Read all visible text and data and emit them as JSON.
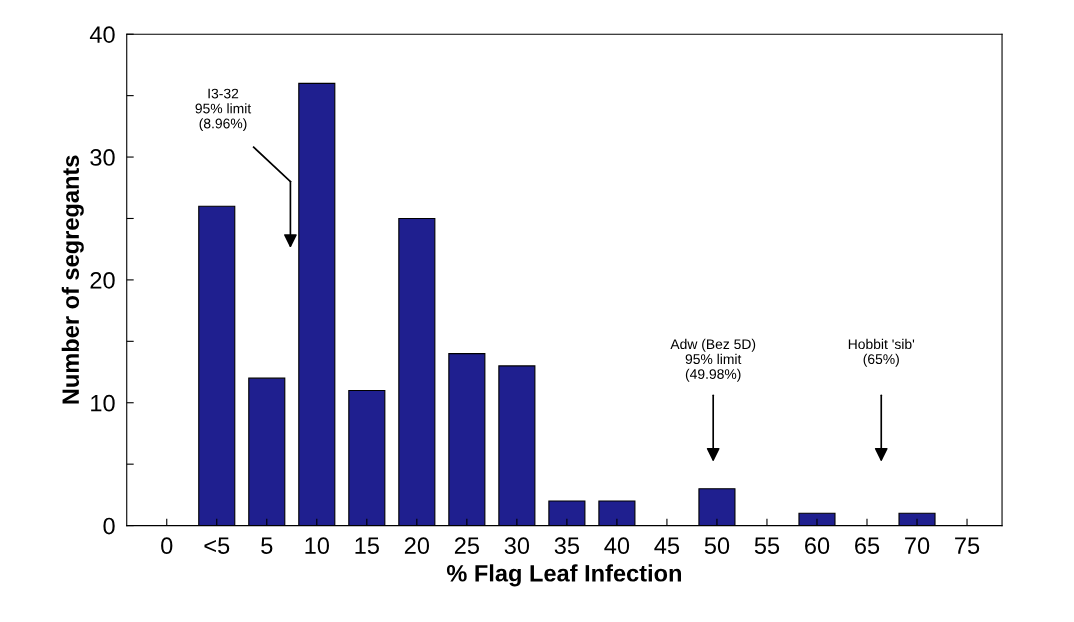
{
  "chart_data": {
    "type": "bar",
    "xlabel": "% Flag Leaf Infection",
    "ylabel": "Number of segregants",
    "categories": [
      "0",
      "<5",
      "5",
      "10",
      "15",
      "20",
      "25",
      "30",
      "35",
      "40",
      "45",
      "50",
      "55",
      "60",
      "65",
      "70",
      "75"
    ],
    "values": [
      0,
      26,
      12,
      36,
      11,
      25,
      14,
      13,
      2,
      2,
      0,
      3,
      0,
      1,
      0,
      1,
      0
    ],
    "color": "#1f1f8f",
    "ylim": [
      0,
      40
    ],
    "yticks": [
      0,
      {
        "value": 5,
        "label": null
      },
      10,
      {
        "value": 15,
        "label": null
      },
      20,
      {
        "value": 25,
        "label": null
      },
      30,
      {
        "value": 35,
        "label": null
      },
      40
    ],
    "grid": false,
    "legend": false,
    "annotations": [
      "I3-32\n95% limit\n(8.96%)",
      "Adw (Bez 5D)\n95% limit\n(49.98%)",
      "Hobbit 'sib'\n(65%)"
    ]
  }
}
